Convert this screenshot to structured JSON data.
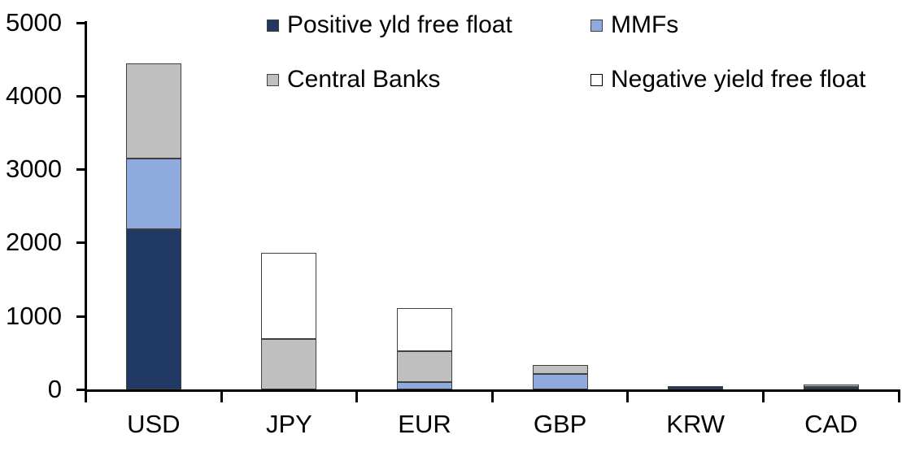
{
  "chart_data": {
    "type": "bar",
    "stacked": true,
    "title": "",
    "categories": [
      "USD",
      "JPY",
      "EUR",
      "GBP",
      "KRW",
      "CAD"
    ],
    "series": [
      {
        "name": "Positive yld free float",
        "color": "#1F3864",
        "values": [
          2180,
          0,
          0,
          0,
          40,
          35
        ]
      },
      {
        "name": "MMFs",
        "color": "#8FAADC",
        "values": [
          960,
          0,
          100,
          210,
          0,
          0
        ]
      },
      {
        "name": "Central Banks",
        "color": "#BFBFBF",
        "values": [
          1300,
          690,
          420,
          120,
          0,
          35
        ]
      },
      {
        "name": "Negative yield free float",
        "color": "#FFFFFF",
        "values": [
          0,
          1170,
          590,
          0,
          0,
          0
        ]
      }
    ],
    "ylim": [
      0,
      5000
    ],
    "ytick_values": [
      0,
      1000,
      2000,
      3000,
      4000,
      5000
    ],
    "ytick_labels": [
      "0",
      "1000",
      "2000",
      "3000",
      "4000",
      "5000"
    ],
    "xlabel": "",
    "ylabel": "",
    "grid": false,
    "legend_position": "top-inside-two-columns",
    "axis_color": "#000000",
    "text_color": "#000000",
    "background_color": "#FFFFFF",
    "segment_border_color": "#404040"
  }
}
